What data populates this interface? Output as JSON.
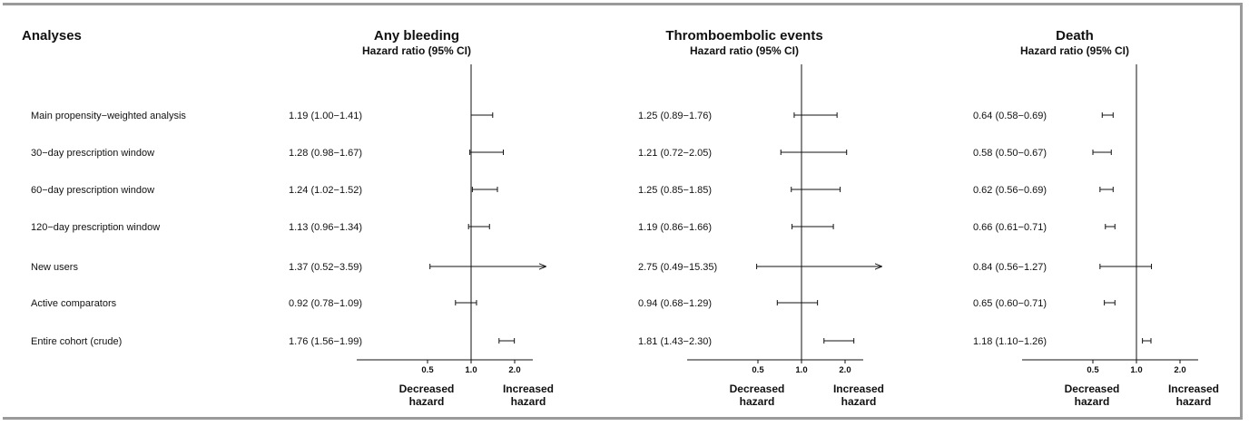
{
  "header": {
    "analyses_label": "Analyses"
  },
  "rows": [
    "Main propensity−weighted analysis",
    "30−day prescription window",
    "60−day prescription window",
    "120−day prescription window",
    "New users",
    "Active comparators",
    "Entire cohort (crude)"
  ],
  "chart_data": [
    {
      "type": "forest",
      "title": "Any bleeding",
      "subtitle": "Hazard ratio (95% CI)",
      "x_scale": "log",
      "ticks": [
        "0.5",
        "1.0",
        "2.0"
      ],
      "reference": 1.0,
      "xlabel_left": [
        "Decreased",
        "hazard"
      ],
      "xlabel_right": [
        "Increased",
        "hazard"
      ],
      "labels": [
        "1.19 (1.00−1.41)",
        "1.28 (0.98−1.67)",
        "1.24 (1.02−1.52)",
        "1.13 (0.96−1.34)",
        "1.37 (0.52−3.59)",
        "0.92 (0.78−1.09)",
        "1.76 (1.56−1.99)"
      ],
      "hr": [
        1.19,
        1.28,
        1.24,
        1.13,
        1.37,
        0.92,
        1.76
      ],
      "lower": [
        1.0,
        0.98,
        1.02,
        0.96,
        0.52,
        0.78,
        1.56
      ],
      "upper": [
        1.41,
        1.67,
        1.52,
        1.34,
        3.59,
        1.09,
        1.99
      ]
    },
    {
      "type": "forest",
      "title": "Thromboembolic events",
      "subtitle": "Hazard ratio (95% CI)",
      "x_scale": "log",
      "ticks": [
        "0.5",
        "1.0",
        "2.0"
      ],
      "reference": 1.0,
      "xlabel_left": [
        "Decreased",
        "hazard"
      ],
      "xlabel_right": [
        "Increased",
        "hazard"
      ],
      "labels": [
        "1.25 (0.89−1.76)",
        "1.21 (0.72−2.05)",
        "1.25 (0.85−1.85)",
        "1.19 (0.86−1.66)",
        "2.75 (0.49−15.35)",
        "0.94 (0.68−1.29)",
        "1.81 (1.43−2.30)"
      ],
      "hr": [
        1.25,
        1.21,
        1.25,
        1.19,
        2.75,
        0.94,
        1.81
      ],
      "lower": [
        0.89,
        0.72,
        0.85,
        0.86,
        0.49,
        0.68,
        1.43
      ],
      "upper": [
        1.76,
        2.05,
        1.85,
        1.66,
        15.35,
        1.29,
        2.3
      ]
    },
    {
      "type": "forest",
      "title": "Death",
      "subtitle": "Hazard ratio (95% CI)",
      "x_scale": "log",
      "ticks": [
        "0.5",
        "1.0",
        "2.0"
      ],
      "reference": 1.0,
      "xlabel_left": [
        "Decreased",
        "hazard"
      ],
      "xlabel_right": [
        "Increased",
        "hazard"
      ],
      "labels": [
        "0.64 (0.58−0.69)",
        "0.58 (0.50−0.67)",
        "0.62 (0.56−0.69)",
        "0.66 (0.61−0.71)",
        "0.84 (0.56−1.27)",
        "0.65 (0.60−0.71)",
        "1.18 (1.10−1.26)"
      ],
      "hr": [
        0.64,
        0.58,
        0.62,
        0.66,
        0.84,
        0.65,
        1.18
      ],
      "lower": [
        0.58,
        0.5,
        0.56,
        0.61,
        0.56,
        0.6,
        1.1
      ],
      "upper": [
        0.69,
        0.67,
        0.69,
        0.71,
        1.27,
        0.71,
        1.26
      ]
    }
  ]
}
